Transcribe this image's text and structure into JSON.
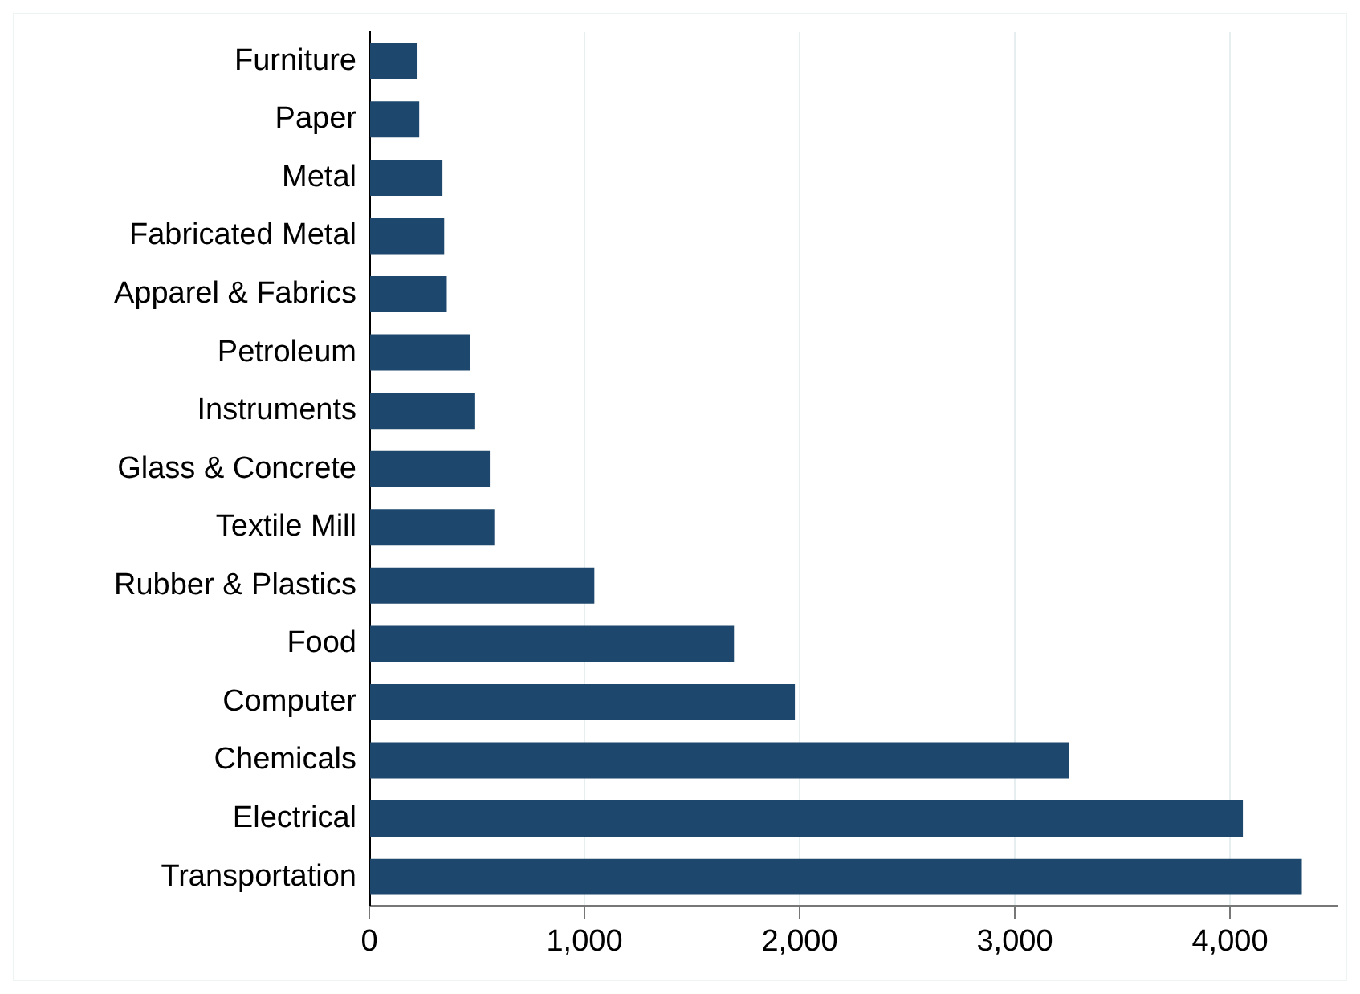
{
  "chart_data": {
    "type": "bar",
    "orientation": "horizontal",
    "categories": [
      "Furniture",
      "Paper",
      "Metal",
      "Fabricated Metal",
      "Apparel & Fabrics",
      "Petroleum",
      "Instruments",
      "Glass & Concrete",
      "Textile Mill",
      "Rubber & Plastics",
      "Food",
      "Computer",
      "Chemicals",
      "Electrical",
      "Transportation"
    ],
    "values": [
      224,
      232,
      340,
      348,
      360,
      469,
      492,
      560,
      581,
      1046,
      1695,
      1978,
      3251,
      4060,
      4334
    ],
    "color": "#1d476d",
    "xlim": [
      0,
      4500
    ],
    "xticks": [
      {
        "value": 0,
        "label": "0"
      },
      {
        "value": 1000,
        "label": "1,000"
      },
      {
        "value": 2000,
        "label": "2,000"
      },
      {
        "value": 3000,
        "label": "3,000"
      },
      {
        "value": 4000,
        "label": "4,000"
      }
    ],
    "grid": "x"
  }
}
